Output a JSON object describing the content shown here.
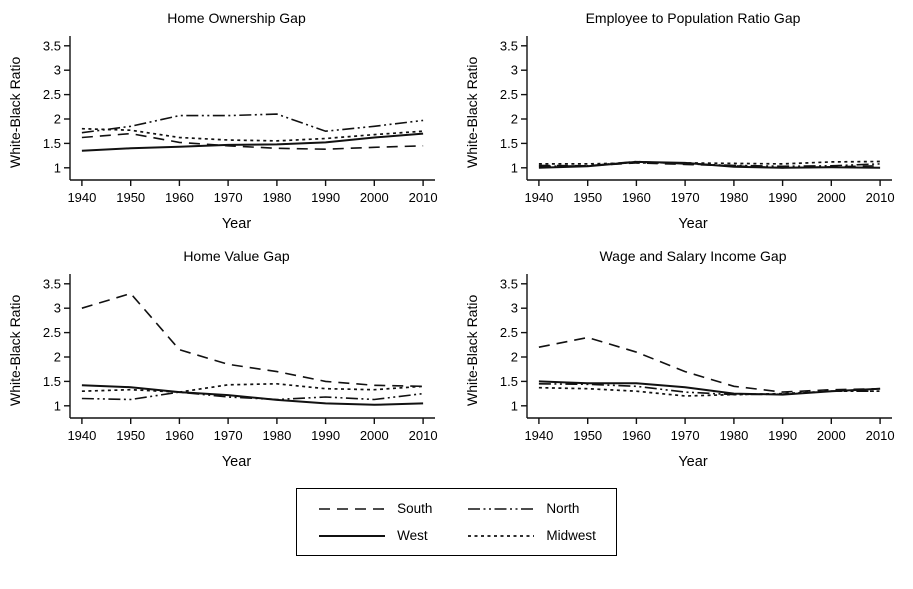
{
  "figure_title": "",
  "colors": {
    "line": "#111111",
    "text": "#000000",
    "background": "#ffffff"
  },
  "legend": {
    "entries": [
      {
        "label": "South",
        "style": "dashed"
      },
      {
        "label": "North",
        "style": "dashdotdot"
      },
      {
        "label": "West",
        "style": "solid"
      },
      {
        "label": "Midwest",
        "style": "dotted"
      }
    ]
  },
  "chart_data": [
    {
      "type": "line",
      "title": "Home Ownership Gap",
      "xlabel": "Year",
      "ylabel": "White-Black Ratio",
      "x": [
        1940,
        1950,
        1960,
        1970,
        1980,
        1990,
        2000,
        2010
      ],
      "xticks": [
        1940,
        1950,
        1960,
        1970,
        1980,
        1990,
        2000,
        2010
      ],
      "yticks": [
        1,
        1.5,
        2,
        2.5,
        3,
        3.5
      ],
      "ylim": [
        0.75,
        3.7
      ],
      "grid": false,
      "series": [
        {
          "name": "South",
          "style": "dashed",
          "values": [
            1.62,
            1.7,
            1.52,
            1.45,
            1.4,
            1.38,
            1.42,
            1.45
          ]
        },
        {
          "name": "West",
          "style": "solid",
          "values": [
            1.35,
            1.4,
            1.43,
            1.47,
            1.48,
            1.52,
            1.62,
            1.7
          ]
        },
        {
          "name": "North",
          "style": "dashdotdot",
          "values": [
            1.72,
            1.85,
            2.07,
            2.07,
            2.1,
            1.75,
            1.85,
            1.97
          ]
        },
        {
          "name": "Midwest",
          "style": "dotted",
          "values": [
            1.8,
            1.77,
            1.62,
            1.57,
            1.55,
            1.6,
            1.68,
            1.75
          ]
        }
      ]
    },
    {
      "type": "line",
      "title": "Employee to Population Ratio Gap",
      "xlabel": "Year",
      "ylabel": "White-Black Ratio",
      "x": [
        1940,
        1950,
        1960,
        1970,
        1980,
        1990,
        2000,
        2010
      ],
      "xticks": [
        1940,
        1950,
        1960,
        1970,
        1980,
        1990,
        2000,
        2010
      ],
      "yticks": [
        1,
        1.5,
        2,
        2.5,
        3,
        3.5
      ],
      "ylim": [
        0.75,
        3.7
      ],
      "grid": false,
      "series": [
        {
          "name": "South",
          "style": "dashed",
          "values": [
            1.05,
            1.04,
            1.1,
            1.07,
            1.04,
            1.0,
            1.02,
            1.04
          ]
        },
        {
          "name": "West",
          "style": "solid",
          "values": [
            1.0,
            1.03,
            1.12,
            1.1,
            1.02,
            1.0,
            1.01,
            1.0
          ]
        },
        {
          "name": "North",
          "style": "dashdotdot",
          "values": [
            1.03,
            1.04,
            1.13,
            1.08,
            1.05,
            1.03,
            1.04,
            1.08
          ]
        },
        {
          "name": "Midwest",
          "style": "dotted",
          "values": [
            1.08,
            1.08,
            1.1,
            1.1,
            1.09,
            1.08,
            1.12,
            1.13
          ]
        }
      ]
    },
    {
      "type": "line",
      "title": "Home Value Gap",
      "xlabel": "Year",
      "ylabel": "White-Black Ratio",
      "x": [
        1940,
        1950,
        1960,
        1970,
        1980,
        1990,
        2000,
        2010
      ],
      "xticks": [
        1940,
        1950,
        1960,
        1970,
        1980,
        1990,
        2000,
        2010
      ],
      "yticks": [
        1,
        1.5,
        2,
        2.5,
        3,
        3.5
      ],
      "ylim": [
        0.75,
        3.7
      ],
      "grid": false,
      "series": [
        {
          "name": "South",
          "style": "dashed",
          "values": [
            3.0,
            3.3,
            2.15,
            1.85,
            1.7,
            1.5,
            1.42,
            1.4
          ]
        },
        {
          "name": "West",
          "style": "solid",
          "values": [
            1.42,
            1.38,
            1.28,
            1.22,
            1.12,
            1.05,
            1.02,
            1.05
          ]
        },
        {
          "name": "North",
          "style": "dashdotdot",
          "values": [
            1.15,
            1.13,
            1.28,
            1.18,
            1.13,
            1.18,
            1.13,
            1.25
          ]
        },
        {
          "name": "Midwest",
          "style": "dotted",
          "values": [
            1.3,
            1.33,
            1.28,
            1.43,
            1.45,
            1.35,
            1.33,
            1.4
          ]
        }
      ]
    },
    {
      "type": "line",
      "title": "Wage and Salary Income Gap",
      "xlabel": "Year",
      "ylabel": "White-Black Ratio",
      "x": [
        1940,
        1950,
        1960,
        1970,
        1980,
        1990,
        2000,
        2010
      ],
      "xticks": [
        1940,
        1950,
        1960,
        1970,
        1980,
        1990,
        2000,
        2010
      ],
      "yticks": [
        1,
        1.5,
        2,
        2.5,
        3,
        3.5
      ],
      "ylim": [
        0.75,
        3.7
      ],
      "grid": false,
      "series": [
        {
          "name": "South",
          "style": "dashed",
          "values": [
            2.2,
            2.4,
            2.1,
            1.7,
            1.4,
            1.28,
            1.33,
            1.35
          ]
        },
        {
          "name": "West",
          "style": "solid",
          "values": [
            1.5,
            1.46,
            1.46,
            1.38,
            1.25,
            1.23,
            1.3,
            1.35
          ]
        },
        {
          "name": "North",
          "style": "dashdotdot",
          "values": [
            1.45,
            1.44,
            1.4,
            1.28,
            1.23,
            1.24,
            1.3,
            1.3
          ]
        },
        {
          "name": "Midwest",
          "style": "dotted",
          "values": [
            1.37,
            1.35,
            1.3,
            1.2,
            1.23,
            1.25,
            1.3,
            1.3
          ]
        }
      ]
    }
  ]
}
